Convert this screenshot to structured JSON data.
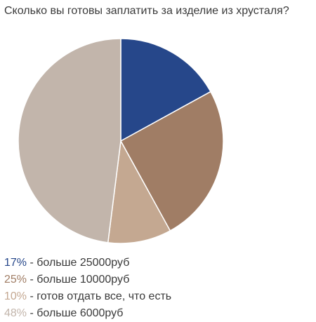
{
  "chart_data": {
    "type": "pie",
    "title": "Сколько вы готовы заплатить за изделие из хрусталя?",
    "slices": [
      {
        "label": "больше 25000руб",
        "value": 17,
        "pct_label": "17%",
        "color": "#26478a"
      },
      {
        "label": "больше 10000руб",
        "value": 25,
        "pct_label": "25%",
        "color": "#a07d65"
      },
      {
        "label": "готов отдать все, что есть",
        "value": 10,
        "pct_label": "10%",
        "color": "#c4a891"
      },
      {
        "label": "больше 6000руб",
        "value": 48,
        "pct_label": "48%",
        "color": "#c2b5ab"
      }
    ],
    "legend_separator": " - ",
    "start_angle": "top",
    "direction": "clockwise",
    "legend_position": "bottom-left"
  }
}
